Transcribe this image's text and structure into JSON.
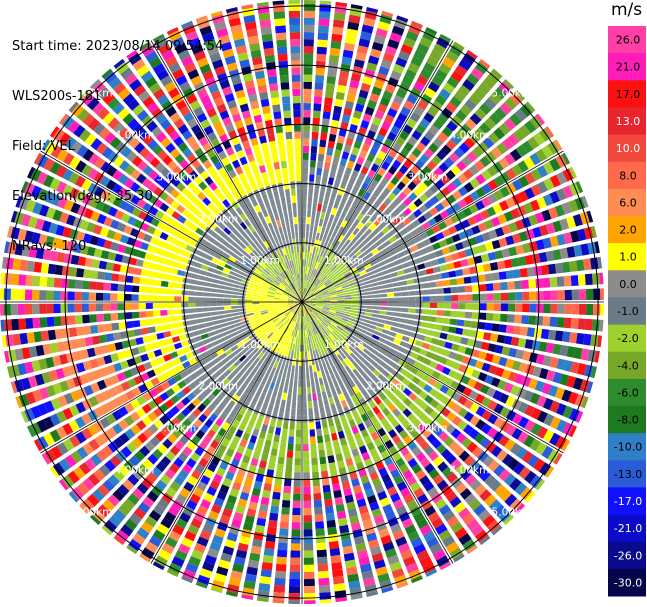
{
  "header": {
    "start_time": "Start time: 2023/08/14 09:54:54",
    "instrument": "WLS200s-181",
    "field": "Field: VEL",
    "elevation": "Elevation(deg): 35.30",
    "nrays": "NRays: 120"
  },
  "chart_data": {
    "type": "heatmap",
    "subtype": "polar-ppi",
    "field": "VEL",
    "units": "m/s",
    "n_rays": 120,
    "elevation_deg": 35.3,
    "range_rings": [
      {
        "range_km": 1.0,
        "label": "1.00km"
      },
      {
        "range_km": 2.0,
        "label": "2.00km"
      },
      {
        "range_km": 3.0,
        "label": "3.00km"
      },
      {
        "range_km": 4.0,
        "label": "4.00km"
      },
      {
        "range_km": 5.0,
        "label": "5.00km"
      }
    ],
    "max_range_km": 5.1,
    "spokes_deg": [
      0,
      30,
      60,
      90,
      120,
      150,
      180,
      210,
      240,
      270,
      300,
      330
    ],
    "colorbar": {
      "label": "m/s",
      "ticks": [
        "26.0",
        "21.0",
        "17.0",
        "13.0",
        "10.0",
        "8.0",
        "6.0",
        "2.0",
        "1.0",
        "0.0",
        "-1.0",
        "-2.0",
        "-4.0",
        "-6.0",
        "-8.0",
        "-10.0",
        "-13.0",
        "-17.0",
        "-21.0",
        "-26.0",
        "-30.0"
      ],
      "bins": [
        {
          "min": 26,
          "max": 30,
          "color": "#ff3fa6"
        },
        {
          "min": 21,
          "max": 26,
          "color": "#ff1cb8"
        },
        {
          "min": 17,
          "max": 21,
          "color": "#ff1010"
        },
        {
          "min": 13,
          "max": 17,
          "color": "#e8242c"
        },
        {
          "min": 10,
          "max": 13,
          "color": "#f2483c"
        },
        {
          "min": 8,
          "max": 10,
          "color": "#ff6a4a"
        },
        {
          "min": 6,
          "max": 8,
          "color": "#ff8c52"
        },
        {
          "min": 2,
          "max": 6,
          "color": "#ffa400"
        },
        {
          "min": 1,
          "max": 2,
          "color": "#ffff00"
        },
        {
          "min": 0,
          "max": 1,
          "color": "#8c8c8c"
        },
        {
          "min": -1,
          "max": 0,
          "color": "#6a7a86"
        },
        {
          "min": -2,
          "max": -1,
          "color": "#9ed12e"
        },
        {
          "min": -4,
          "max": -2,
          "color": "#77a82a"
        },
        {
          "min": -6,
          "max": -4,
          "color": "#2e8b2e"
        },
        {
          "min": -8,
          "max": -6,
          "color": "#1e7a1e"
        },
        {
          "min": -10,
          "max": -8,
          "color": "#2f80c8"
        },
        {
          "min": -13,
          "max": -10,
          "color": "#2a5bd8"
        },
        {
          "min": -17,
          "max": -13,
          "color": "#1010ff"
        },
        {
          "min": -21,
          "max": -17,
          "color": "#0a0ac8"
        },
        {
          "min": -26,
          "max": -21,
          "color": "#0a0a8c"
        },
        {
          "min": -30,
          "max": -26,
          "color": "#05054c"
        }
      ]
    },
    "regions": [
      {
        "r_min_km": 0.0,
        "r_max_km": 0.25,
        "description": "center mix",
        "palette": [
          "#9ed12e",
          "#2e8b2e",
          "#ffff00",
          "#ffa400",
          "#8c8c8c"
        ]
      },
      {
        "r_min_km": 0.25,
        "r_max_km": 1.0,
        "dominant": "#9ed12e",
        "west_sector": "#ffff00"
      },
      {
        "r_min_km": 1.0,
        "r_max_km": 2.0,
        "dominant": "#8c8c8c",
        "speckle": "#ffff00"
      },
      {
        "r_min_km": 2.0,
        "r_max_km": 2.7,
        "dominant": "#ffff00",
        "sector_deg": [
          240,
          360
        ]
      },
      {
        "r_min_km": 2.0,
        "r_max_km": 3.0,
        "dominant": "#9ed12e",
        "sector_deg": [
          90,
          210
        ]
      },
      {
        "r_min_km": 3.0,
        "r_max_km": 5.1,
        "dominant": "noise"
      }
    ]
  }
}
